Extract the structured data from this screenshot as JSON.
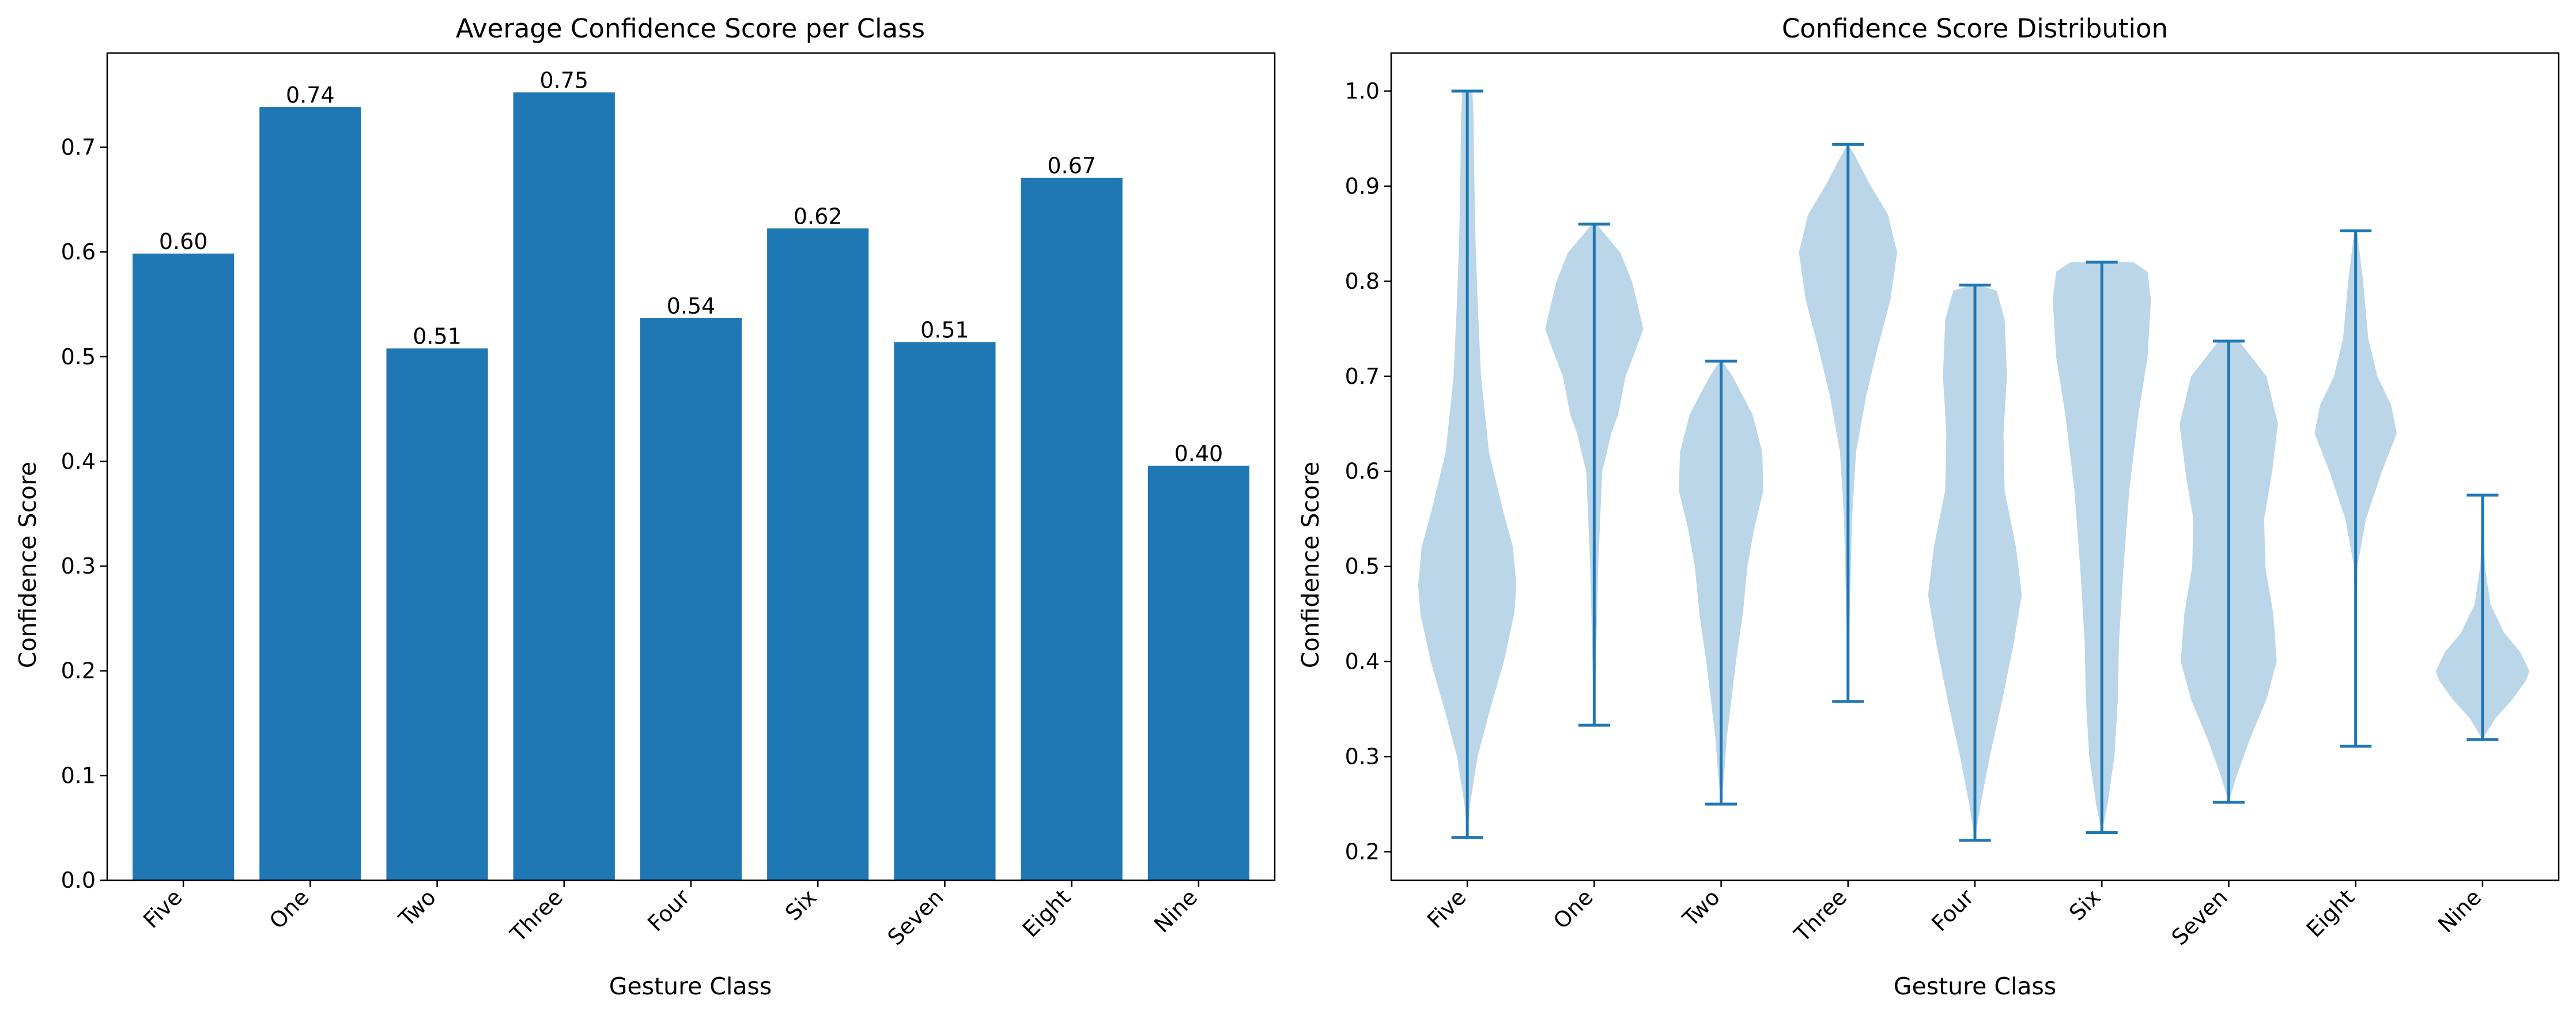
{
  "colors": {
    "bar": "#1f77b4",
    "violin_fill": "#1f77b4",
    "axes": "#000000"
  },
  "chart_data": [
    {
      "type": "bar",
      "title": "Average Confidence Score per Class",
      "xlabel": "Gesture Class",
      "ylabel": "Confidence Score",
      "categories": [
        "Five",
        "One",
        "Two",
        "Three",
        "Four",
        "Six",
        "Seven",
        "Eight",
        "Nine"
      ],
      "values": [
        0.5985,
        0.7383,
        0.5079,
        0.7524,
        0.5368,
        0.6225,
        0.514,
        0.6707,
        0.3959
      ],
      "data_labels": [
        "0.60",
        "0.74",
        "0.51",
        "0.75",
        "0.54",
        "0.62",
        "0.51",
        "0.67",
        "0.40"
      ],
      "ylim": [
        0,
        0.79
      ],
      "yticks": [
        "0.0",
        "0.1",
        "0.2",
        "0.3",
        "0.4",
        "0.5",
        "0.6",
        "0.7"
      ],
      "grid": false,
      "x_tick_rotation_deg": 45
    },
    {
      "type": "violin",
      "title": "Confidence Score Distribution",
      "xlabel": "Gesture Class",
      "ylabel": "Confidence Score",
      "categories": [
        "Five",
        "One",
        "Two",
        "Three",
        "Four",
        "Six",
        "Seven",
        "Eight",
        "Nine"
      ],
      "ylim": [
        0.17,
        1.04
      ],
      "yticks": [
        "0.2",
        "0.3",
        "0.4",
        "0.5",
        "0.6",
        "0.7",
        "0.8",
        "0.9",
        "1.0"
      ],
      "grid": false,
      "x_tick_rotation_deg": 45,
      "series": [
        {
          "min": 0.215,
          "max": 1.0,
          "profile": [
            [
              0.215,
              0.0
            ],
            [
              0.25,
              0.05
            ],
            [
              0.3,
              0.18
            ],
            [
              0.35,
              0.4
            ],
            [
              0.4,
              0.64
            ],
            [
              0.45,
              0.82
            ],
            [
              0.48,
              0.86
            ],
            [
              0.52,
              0.8
            ],
            [
              0.56,
              0.62
            ],
            [
              0.62,
              0.38
            ],
            [
              0.7,
              0.24
            ],
            [
              0.78,
              0.18
            ],
            [
              0.85,
              0.14
            ],
            [
              0.92,
              0.12
            ],
            [
              0.97,
              0.11
            ],
            [
              1.0,
              0.09
            ]
          ]
        },
        {
          "min": 0.333,
          "max": 0.86,
          "profile": [
            [
              0.333,
              0.0
            ],
            [
              0.4,
              0.03
            ],
            [
              0.5,
              0.07
            ],
            [
              0.6,
              0.14
            ],
            [
              0.64,
              0.3
            ],
            [
              0.66,
              0.42
            ],
            [
              0.7,
              0.55
            ],
            [
              0.73,
              0.74
            ],
            [
              0.75,
              0.86
            ],
            [
              0.77,
              0.78
            ],
            [
              0.8,
              0.66
            ],
            [
              0.83,
              0.46
            ],
            [
              0.86,
              0.04
            ]
          ]
        },
        {
          "min": 0.25,
          "max": 0.716,
          "profile": [
            [
              0.25,
              0.0
            ],
            [
              0.28,
              0.05
            ],
            [
              0.32,
              0.1
            ],
            [
              0.36,
              0.18
            ],
            [
              0.4,
              0.26
            ],
            [
              0.45,
              0.38
            ],
            [
              0.5,
              0.46
            ],
            [
              0.54,
              0.58
            ],
            [
              0.58,
              0.74
            ],
            [
              0.62,
              0.72
            ],
            [
              0.66,
              0.55
            ],
            [
              0.7,
              0.2
            ],
            [
              0.716,
              0.02
            ]
          ]
        },
        {
          "min": 0.358,
          "max": 0.944,
          "profile": [
            [
              0.358,
              0.0
            ],
            [
              0.45,
              0.03
            ],
            [
              0.55,
              0.07
            ],
            [
              0.62,
              0.14
            ],
            [
              0.68,
              0.32
            ],
            [
              0.73,
              0.52
            ],
            [
              0.78,
              0.74
            ],
            [
              0.83,
              0.86
            ],
            [
              0.87,
              0.7
            ],
            [
              0.9,
              0.4
            ],
            [
              0.94,
              0.05
            ]
          ]
        },
        {
          "min": 0.212,
          "max": 0.796,
          "profile": [
            [
              0.212,
              0.0
            ],
            [
              0.25,
              0.1
            ],
            [
              0.3,
              0.26
            ],
            [
              0.36,
              0.48
            ],
            [
              0.42,
              0.68
            ],
            [
              0.47,
              0.82
            ],
            [
              0.52,
              0.72
            ],
            [
              0.58,
              0.52
            ],
            [
              0.64,
              0.5
            ],
            [
              0.7,
              0.56
            ],
            [
              0.76,
              0.52
            ],
            [
              0.79,
              0.38
            ],
            [
              0.796,
              0.06
            ]
          ]
        },
        {
          "min": 0.22,
          "max": 0.82,
          "profile": [
            [
              0.22,
              0.0
            ],
            [
              0.25,
              0.1
            ],
            [
              0.3,
              0.22
            ],
            [
              0.36,
              0.28
            ],
            [
              0.42,
              0.3
            ],
            [
              0.5,
              0.38
            ],
            [
              0.58,
              0.48
            ],
            [
              0.66,
              0.64
            ],
            [
              0.72,
              0.8
            ],
            [
              0.78,
              0.86
            ],
            [
              0.81,
              0.8
            ],
            [
              0.82,
              0.55
            ]
          ]
        },
        {
          "min": 0.252,
          "max": 0.737,
          "profile": [
            [
              0.252,
              0.0
            ],
            [
              0.28,
              0.14
            ],
            [
              0.32,
              0.38
            ],
            [
              0.36,
              0.66
            ],
            [
              0.4,
              0.84
            ],
            [
              0.45,
              0.78
            ],
            [
              0.5,
              0.64
            ],
            [
              0.55,
              0.62
            ],
            [
              0.6,
              0.76
            ],
            [
              0.65,
              0.86
            ],
            [
              0.7,
              0.66
            ],
            [
              0.737,
              0.18
            ]
          ]
        },
        {
          "min": 0.311,
          "max": 0.853,
          "profile": [
            [
              0.311,
              0.0
            ],
            [
              0.4,
              0.01
            ],
            [
              0.5,
              0.03
            ],
            [
              0.55,
              0.18
            ],
            [
              0.6,
              0.46
            ],
            [
              0.64,
              0.72
            ],
            [
              0.67,
              0.62
            ],
            [
              0.7,
              0.38
            ],
            [
              0.74,
              0.22
            ],
            [
              0.8,
              0.13
            ],
            [
              0.85,
              0.03
            ]
          ]
        },
        {
          "min": 0.318,
          "max": 0.575,
          "profile": [
            [
              0.318,
              0.0
            ],
            [
              0.34,
              0.22
            ],
            [
              0.36,
              0.52
            ],
            [
              0.38,
              0.76
            ],
            [
              0.39,
              0.82
            ],
            [
              0.41,
              0.66
            ],
            [
              0.43,
              0.38
            ],
            [
              0.46,
              0.14
            ],
            [
              0.5,
              0.04
            ],
            [
              0.575,
              0.0
            ]
          ]
        }
      ]
    }
  ]
}
